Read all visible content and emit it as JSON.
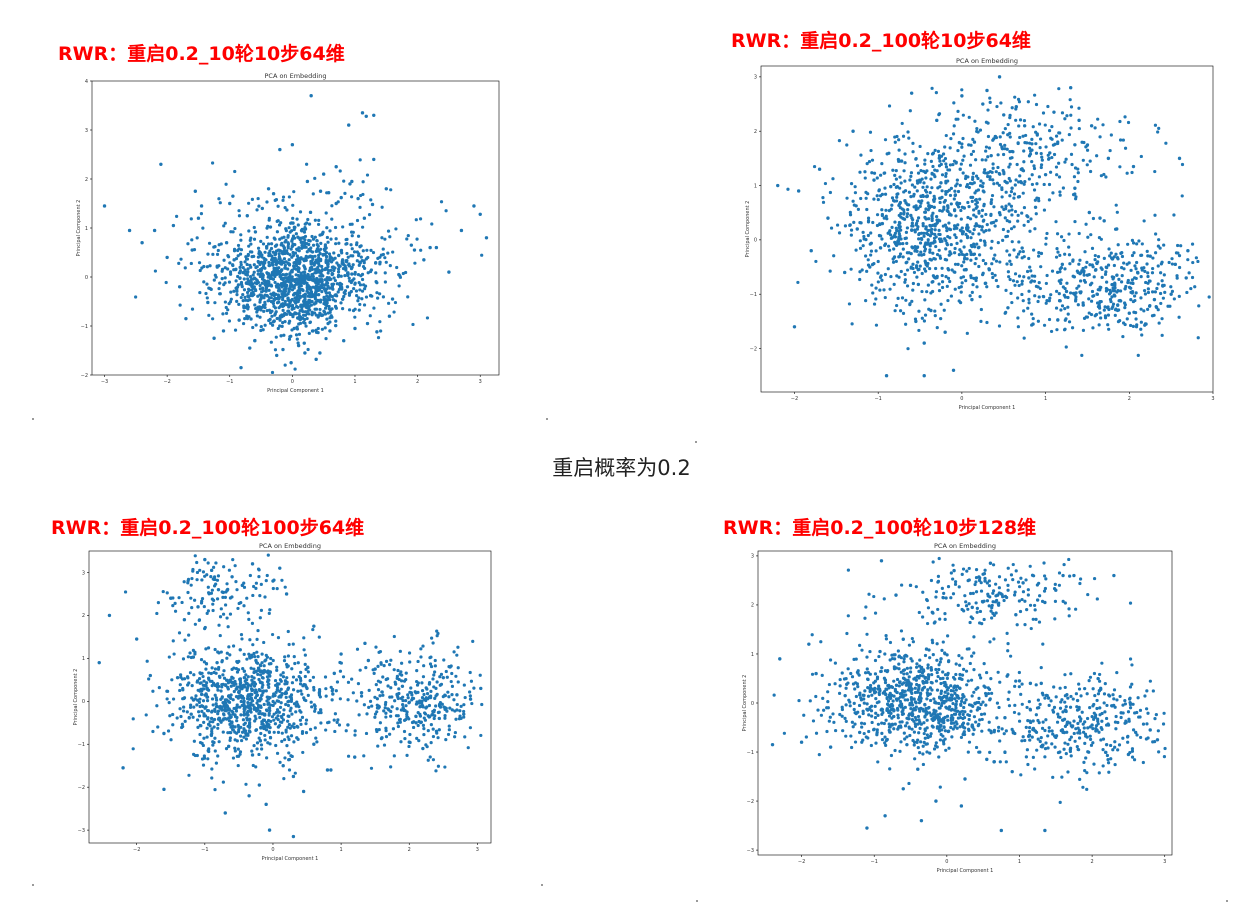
{
  "caption": "重启概率为0.2",
  "panel_labels": [
    "RWR：重启0.2_10轮10步64维",
    "RWR：重启0.2_100轮10步64维",
    "RWR：重启0.2_100轮100步64维",
    "RWR：重启0.2_100轮10步128维"
  ],
  "colors": {
    "label": "#ff0000",
    "points": "#1f77b4",
    "axes": "#000000"
  },
  "chart_data": [
    {
      "type": "scatter",
      "title": "PCA on Embedding",
      "xlabel": "Principal Component 1",
      "ylabel": "Principal Component 2",
      "xlim": [
        -3.2,
        3.3
      ],
      "ylim": [
        -2.0,
        4.0
      ],
      "xticks": [
        -3,
        -2,
        -1,
        0,
        1,
        2,
        3
      ],
      "yticks": [
        -2,
        -1,
        0,
        1,
        2,
        3,
        4
      ],
      "grid": false,
      "legend": "none",
      "x": [
        0.08,
        -0.31,
        0.42,
        -0.12,
        0.27,
        -0.55,
        0.66,
        -0.04,
        0.15,
        -0.78,
        0.52,
        -0.22,
        0.03,
        0.35,
        -0.41,
        0.88,
        -0.93,
        0.21,
        -0.07,
        0.48,
        -0.29,
        0.61,
        -0.65,
        0.12,
        -0.18,
        0.74,
        -1.05,
        0.33,
        -0.46,
        0.95,
        -0.85,
        0.19,
        0.01,
        -0.35,
        0.57,
        -1.2,
        1.08,
        -0.59,
        0.29,
        -0.15,
        1.25,
        -1.35,
        0.44,
        -0.72,
        1.4,
        -1.6,
        0.7,
        -0.25,
        1.55,
        -1.8,
        0.82,
        -0.48,
        -1.1,
        1.7,
        -2.0,
        1.05,
        -0.02,
        1.35,
        -0.95,
        0.58,
        -2.2,
        1.9,
        -1.45,
        0.38,
        -0.68,
        2.1,
        -1.25,
        0.92,
        -0.38,
        1.15,
        -1.7,
        0.24,
        2.3,
        -2.4,
        1.6,
        -0.82,
        0.5,
        -1.9,
        2.5,
        0.78,
        -1.5,
        1.28,
        -0.6,
        0.1,
        1.0,
        -1.0,
        0.2,
        0.6,
        -0.3,
        1.2,
        0.0,
        1.3,
        1.12,
        1.18,
        1.3,
        0.9,
        1.5,
        0.95,
        -2.1,
        -2.6,
        -3.0,
        2.9,
        3.0,
        3.1,
        2.7,
        1.95,
        2.2,
        -1.55,
        0.45,
        -0.2,
        0.7,
        0.3
      ],
      "y": [
        -0.12,
        0.25,
        -0.36,
        0.48,
        -0.05,
        -0.62,
        0.18,
        -0.74,
        0.71,
        0.09,
        0.55,
        -0.28,
        -1.05,
        -0.55,
        0.62,
        -0.2,
        0.35,
        0.98,
        -0.44,
        0.88,
        -0.9,
        -0.67,
        -0.15,
        0.3,
        -1.2,
        0.44,
        0.7,
        -1.1,
        -0.58,
        0.06,
        -0.88,
        -1.35,
        1.1,
        1.02,
        -0.95,
        0.22,
        0.62,
        0.92,
        1.32,
        -1.48,
        -0.38,
        -0.52,
        -1.55,
        1.25,
        0.3,
        0.55,
        1.5,
        -1.6,
        -0.8,
        -0.2,
        -1.3,
        1.4,
        -1.1,
        0.05,
        0.4,
        1.6,
        -1.75,
        -1.12,
        1.65,
        1.72,
        0.95,
        0.65,
        1.45,
        -1.68,
        -1.45,
        0.35,
        -1.25,
        1.9,
        1.8,
        1.2,
        -0.85,
        1.95,
        0.6,
        0.7,
        -0.45,
        -1.85,
        2.1,
        1.05,
        0.1,
        1.62,
        1.2,
        1.48,
        -1.3,
        -1.4,
        -1.05,
        1.5,
        -1.55,
        -1.1,
        1.7,
        -0.95,
        2.7,
        2.4,
        3.35,
        3.28,
        3.3,
        3.1,
        1.8,
        1.95,
        2.3,
        0.95,
        1.45,
        1.45,
        1.28,
        0.8,
        0.95,
        0.55,
        0.6,
        1.75,
        1.75,
        2.6,
        2.25,
        3.7
      ]
    },
    {
      "type": "scatter",
      "title": "PCA on Embedding",
      "xlabel": "Principal Component 1",
      "ylabel": "Principal Component 2",
      "xlim": [
        -2.4,
        3.0
      ],
      "ylim": [
        -2.8,
        3.2
      ],
      "xticks": [
        -2,
        -1,
        0,
        1,
        2,
        3
      ],
      "yticks": [
        -2,
        -1,
        0,
        1,
        2,
        3
      ],
      "grid": false,
      "legend": "none",
      "x": [
        -0.42,
        -0.15,
        -0.61,
        0.05,
        -0.33,
        -0.78,
        0.21,
        -0.52,
        -0.08,
        0.38,
        -0.95,
        -0.25,
        0.12,
        -0.68,
        0.45,
        -1.1,
        -0.37,
        0.6,
        -0.85,
        0.28,
        -1.25,
        -0.02,
        0.72,
        -0.55,
        0.88,
        -1.4,
        0.35,
        -0.2,
        1.0,
        -1.6,
        0.55,
        -0.72,
        1.2,
        -1.8,
        0.15,
        1.35,
        -0.45,
        1.5,
        -1.95,
        0.8,
        1.65,
        -1.05,
        1.8,
        -0.3,
        1.95,
        2.1,
        2.25,
        1.45,
        2.4,
        1.7,
        2.55,
        2.0,
        2.68,
        1.25,
        2.3,
        0.95,
        1.6,
        2.2,
        2.5,
        1.85,
        0.25,
        0.5,
        0.75,
        1.1,
        0.4,
        0.65,
        1.35,
        0.0,
        0.9,
        1.55,
        -0.6,
        0.3,
        1.05,
        1.75,
        2.05,
        1.4,
        -1.3,
        -2.2,
        -2.0,
        -1.7,
        0.45,
        1.3,
        -0.45,
        -0.9,
        2.7,
        2.6,
        -0.1,
        0.85
      ],
      "y": [
        0.12,
        -0.28,
        0.45,
        -0.55,
        0.6,
        -0.1,
        0.25,
        -0.82,
        0.82,
        -0.35,
        0.3,
        1.05,
        -1.1,
        0.72,
        0.5,
        -0.5,
        -1.3,
        0.95,
        0.98,
        -0.8,
        0.2,
        1.3,
        -0.15,
        -1.5,
        0.6,
        -0.6,
        1.55,
        -1.7,
        1.2,
        0.4,
        -1.25,
        1.45,
        -0.45,
        -0.2,
        1.8,
        0.95,
        -1.9,
        -0.65,
        0.9,
        -0.7,
        0.4,
        1.1,
        -0.35,
        2.2,
        -0.9,
        -0.6,
        -0.3,
        -1.2,
        -0.85,
        0.35,
        -0.45,
        -1.35,
        -0.7,
        -0.95,
        -1.1,
        -0.25,
        -0.55,
        -1.55,
        -1.0,
        0.2,
        2.5,
        2.3,
        2.1,
        2.35,
        1.9,
        2.45,
        1.75,
        2.65,
        1.95,
        2.1,
        2.7,
        2.75,
        1.6,
        1.5,
        1.35,
        2.2,
        2.0,
        1.0,
        -1.6,
        1.3,
        3.0,
        2.8,
        -2.5,
        -2.5,
        -0.2,
        1.5,
        -2.4,
        -1.55
      ]
    },
    {
      "type": "scatter",
      "title": "PCA on Embedding",
      "xlabel": "Principal Component 1",
      "ylabel": "Principal Component 2",
      "xlim": [
        -2.7,
        3.2
      ],
      "ylim": [
        -3.3,
        3.5
      ],
      "xticks": [
        -2,
        -1,
        0,
        1,
        2,
        3
      ],
      "yticks": [
        -3,
        -2,
        -1,
        0,
        1,
        2,
        3
      ],
      "grid": false,
      "legend": "none",
      "x": [
        -0.35,
        -0.12,
        -0.58,
        0.08,
        -0.42,
        -0.75,
        0.22,
        -0.25,
        -0.9,
        0.35,
        -0.05,
        -0.65,
        0.5,
        -1.05,
        -0.3,
        0.7,
        -0.82,
        0.15,
        -1.2,
        0.9,
        -0.48,
        1.1,
        -1.4,
        0.3,
        1.3,
        -0.95,
        1.5,
        -1.6,
        0.6,
        1.7,
        -0.2,
        1.9,
        -1.8,
        2.1,
        1.2,
        2.3,
        0.85,
        2.5,
        1.6,
        2.7,
        2.0,
        1.4,
        2.4,
        2.8,
        1.8,
        2.6,
        2.2,
        1.0,
        2.9,
        -1.5,
        -0.8,
        -0.6,
        -0.3,
        -1.1,
        0.0,
        -0.9,
        0.2,
        -0.45,
        -1.3,
        0.1,
        -0.1,
        -0.7,
        -0.35,
        -1.6,
        -2.0,
        -2.4,
        -2.55,
        -2.2,
        0.45,
        -0.05,
        0.8,
        1.35,
        0.6,
        3.05,
        -1.0,
        0.3
      ],
      "y": [
        0.05,
        -0.32,
        0.42,
        -0.6,
        0.7,
        -0.15,
        0.28,
        0.95,
        -0.4,
        -0.85,
        0.6,
        -1.05,
        0.3,
        0.25,
        -1.25,
        -0.2,
        0.9,
        -1.5,
        -0.3,
        0.65,
        1.2,
        -0.55,
        0.55,
        -1.75,
        0.2,
        -1.15,
        0.75,
        -0.75,
        -1.0,
        -0.2,
        -1.95,
        0.35,
        0.6,
        -0.5,
        -1.3,
        0.1,
        -1.6,
        0.55,
        -0.85,
        0.15,
        -0.95,
        0.95,
        -0.7,
        -0.3,
        0.4,
        0.8,
        -1.1,
        1.1,
        0.05,
        2.4,
        2.6,
        2.9,
        3.2,
        2.2,
        2.8,
        3.05,
        2.5,
        2.7,
        1.9,
        3.1,
        -2.4,
        -2.6,
        -2.2,
        -2.05,
        1.45,
        2.0,
        0.9,
        -1.55,
        -2.1,
        -3.0,
        -1.6,
        1.35,
        1.75,
        0.3,
        3.3,
        -3.15
      ]
    },
    {
      "type": "scatter",
      "title": "PCA on Embedding",
      "xlabel": "Principal Component 1",
      "ylabel": "Principal Component 2",
      "xlim": [
        -2.6,
        3.1
      ],
      "ylim": [
        -3.1,
        3.1
      ],
      "xticks": [
        -2,
        -1,
        0,
        1,
        2,
        3
      ],
      "yticks": [
        -3,
        -2,
        -1,
        0,
        1,
        2,
        3
      ],
      "grid": false,
      "legend": "none",
      "x": [
        -0.45,
        -0.18,
        -0.65,
        0.02,
        -0.32,
        -0.82,
        0.18,
        -0.55,
        -0.08,
        0.35,
        -1.0,
        -0.28,
        0.55,
        -0.72,
        0.8,
        -1.2,
        -0.4,
        1.0,
        -0.92,
        0.25,
        -1.4,
        1.2,
        -0.6,
        1.4,
        -1.6,
        0.65,
        1.6,
        -0.15,
        1.8,
        -1.8,
        2.0,
        0.9,
        2.2,
        1.3,
        2.4,
        1.7,
        2.6,
        2.1,
        2.8,
        1.5,
        2.5,
        -2.0,
        -2.3,
        0.45,
        0.7,
        1.05,
        1.25,
        1.5,
        1.75,
        0.1,
        0.35,
        0.95,
        1.35,
        1.6,
        -0.5,
        -0.2,
        0.6,
        -0.7,
        -0.85,
        -1.1,
        -0.35,
        0.2,
        0.75,
        1.35,
        -1.9,
        -2.4,
        2.3,
        2.9,
        1.15,
        -0.9,
        -0.6
      ],
      "y": [
        0.08,
        -0.3,
        0.42,
        -0.58,
        0.65,
        -0.12,
        0.3,
        -0.85,
        0.9,
        -0.45,
        0.25,
        1.1,
        -1.15,
        0.7,
        -0.3,
        -0.6,
        -1.35,
        0.45,
        1.05,
        -1.55,
        0.15,
        -0.55,
        -1.75,
        0.1,
        -0.9,
        -1.2,
        -0.35,
        -2.0,
        0.05,
        0.6,
        -0.45,
        -1.4,
        -0.85,
        0.4,
        -0.2,
        -0.95,
        -0.6,
        0.25,
        -0.55,
        -0.7,
        -1.05,
        -0.8,
        0.9,
        2.5,
        2.2,
        2.45,
        2.1,
        2.3,
        2.6,
        2.7,
        1.95,
        1.8,
        2.05,
        2.6,
        2.4,
        1.85,
        2.85,
        2.2,
        -2.3,
        -2.55,
        -2.4,
        -2.1,
        -2.6,
        -2.6,
        1.2,
        -0.85,
        2.6,
        -0.75,
        0.4,
        2.9,
        1.3
      ]
    }
  ]
}
